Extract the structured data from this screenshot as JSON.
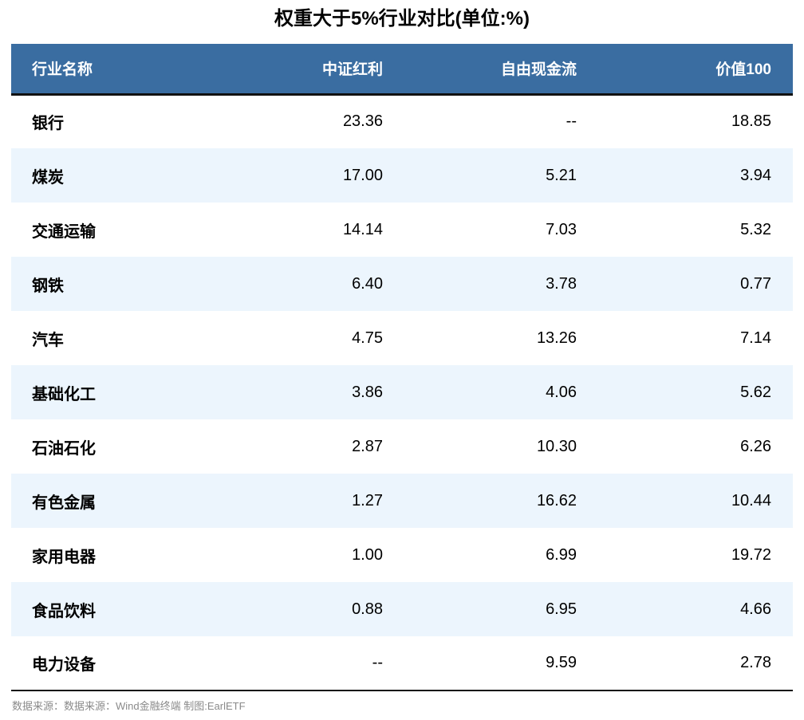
{
  "title": "权重大于5%行业对比(单位:%)",
  "colors": {
    "header_bg": "#3a6da1",
    "header_text": "#ffffff",
    "stripe_bg": "#ecf5fd",
    "border": "#111111",
    "footer_text": "#8a8a8a"
  },
  "table": {
    "headers": [
      "行业名称",
      "中证红利",
      "自由现金流",
      "价值100"
    ],
    "rows": [
      {
        "name": "银行",
        "values": [
          "23.36",
          "--",
          "18.85"
        ]
      },
      {
        "name": "煤炭",
        "values": [
          "17.00",
          "5.21",
          "3.94"
        ]
      },
      {
        "name": "交通运输",
        "values": [
          "14.14",
          "7.03",
          "5.32"
        ]
      },
      {
        "name": "钢铁",
        "values": [
          "6.40",
          "3.78",
          "0.77"
        ]
      },
      {
        "name": "汽车",
        "values": [
          "4.75",
          "13.26",
          "7.14"
        ]
      },
      {
        "name": "基础化工",
        "values": [
          "3.86",
          "4.06",
          "5.62"
        ]
      },
      {
        "name": "石油石化",
        "values": [
          "2.87",
          "10.30",
          "6.26"
        ]
      },
      {
        "name": "有色金属",
        "values": [
          "1.27",
          "16.62",
          "10.44"
        ]
      },
      {
        "name": "家用电器",
        "values": [
          "1.00",
          "6.99",
          "19.72"
        ]
      },
      {
        "name": "食品饮料",
        "values": [
          "0.88",
          "6.95",
          "4.66"
        ]
      },
      {
        "name": "电力设备",
        "values": [
          "--",
          "9.59",
          "2.78"
        ]
      }
    ]
  },
  "footer": {
    "source": "数据来源：数据来源：Wind金融终端 制图:EarlETF"
  },
  "chart_data": {
    "type": "table",
    "title": "权重大于5%行业对比(单位:%)",
    "unit": "%",
    "missing_marker": "--",
    "categories": [
      "银行",
      "煤炭",
      "交通运输",
      "钢铁",
      "汽车",
      "基础化工",
      "石油石化",
      "有色金属",
      "家用电器",
      "食品饮料",
      "电力设备"
    ],
    "series": [
      {
        "name": "中证红利",
        "values": [
          23.36,
          17.0,
          14.14,
          6.4,
          4.75,
          3.86,
          2.87,
          1.27,
          1.0,
          0.88,
          null
        ]
      },
      {
        "name": "自由现金流",
        "values": [
          null,
          5.21,
          7.03,
          3.78,
          13.26,
          4.06,
          10.3,
          16.62,
          6.99,
          6.95,
          9.59
        ]
      },
      {
        "name": "价值100",
        "values": [
          18.85,
          3.94,
          5.32,
          0.77,
          7.14,
          5.62,
          6.26,
          10.44,
          19.72,
          4.66,
          2.78
        ]
      }
    ]
  }
}
